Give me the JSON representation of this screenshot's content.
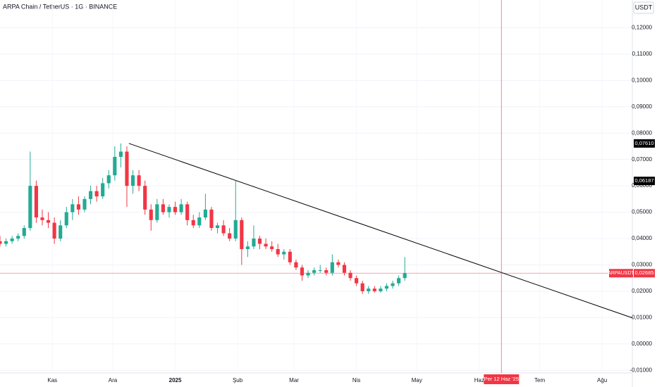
{
  "chart_data": {
    "type": "candlestick",
    "title": "ARPA Chain / TetherUS · 1G · BINANCE",
    "currency": "USDT",
    "symbol": "ARPAUSDT",
    "xlim": [
      0,
      314
    ],
    "ylim": [
      -0.011,
      0.13
    ],
    "xticks": [
      {
        "value": 26,
        "label": "Kas"
      },
      {
        "value": 56,
        "label": "Ara"
      },
      {
        "value": 87,
        "label": "2025"
      },
      {
        "value": 118,
        "label": "Şub"
      },
      {
        "value": 146,
        "label": "Mar"
      },
      {
        "value": 177,
        "label": "Nis"
      },
      {
        "value": 207,
        "label": "May"
      },
      {
        "value": 238,
        "label": "Haz"
      },
      {
        "value": 268,
        "label": "Tem"
      },
      {
        "value": 299,
        "label": "Ağu"
      }
    ],
    "yticks": [
      {
        "value": 0.12,
        "label": "0,12000"
      },
      {
        "value": 0.11,
        "label": "0,11000"
      },
      {
        "value": 0.1,
        "label": "0,10000"
      },
      {
        "value": 0.09,
        "label": "0,09000"
      },
      {
        "value": 0.08,
        "label": "0,08000"
      },
      {
        "value": 0.07,
        "label": "0,07000"
      },
      {
        "value": 0.06,
        "label": "0,06000"
      },
      {
        "value": 0.05,
        "label": "0,05000"
      },
      {
        "value": 0.04,
        "label": "0,04000"
      },
      {
        "value": 0.03,
        "label": "0,03000"
      },
      {
        "value": 0.02,
        "label": "0,02000"
      },
      {
        "value": 0.01,
        "label": "0,01000"
      },
      {
        "value": 0,
        "label": "0,00000"
      },
      {
        "value": -0.01,
        "label": "-0,01000"
      }
    ],
    "grid": true,
    "up_color": "#22ab94",
    "down_color": "#f23645",
    "x": [
      0,
      3,
      6,
      9,
      12,
      15,
      18,
      21,
      24,
      27,
      30,
      33,
      36,
      39,
      42,
      45,
      48,
      51,
      54,
      57,
      60,
      63,
      66,
      69,
      72,
      75,
      78,
      81,
      84,
      87,
      90,
      93,
      96,
      99,
      102,
      105,
      108,
      111,
      114,
      117,
      120,
      123,
      126,
      129,
      132,
      135,
      138,
      141,
      144,
      147,
      150,
      153,
      156,
      159,
      162,
      165,
      168,
      171,
      174,
      177,
      180,
      183,
      186,
      189,
      192,
      195,
      198,
      201
    ],
    "ohlc": [
      [
        0.039,
        0.041,
        0.037,
        0.038
      ],
      [
        0.038,
        0.04,
        0.037,
        0.039
      ],
      [
        0.039,
        0.041,
        0.038,
        0.04
      ],
      [
        0.04,
        0.042,
        0.039,
        0.041
      ],
      [
        0.041,
        0.045,
        0.04,
        0.044
      ],
      [
        0.044,
        0.073,
        0.043,
        0.06
      ],
      [
        0.06,
        0.062,
        0.046,
        0.048
      ],
      [
        0.048,
        0.051,
        0.045,
        0.047
      ],
      [
        0.047,
        0.05,
        0.044,
        0.046
      ],
      [
        0.046,
        0.048,
        0.038,
        0.04
      ],
      [
        0.04,
        0.047,
        0.039,
        0.045
      ],
      [
        0.045,
        0.052,
        0.044,
        0.05
      ],
      [
        0.05,
        0.055,
        0.047,
        0.053
      ],
      [
        0.053,
        0.056,
        0.049,
        0.051
      ],
      [
        0.051,
        0.056,
        0.05,
        0.055
      ],
      [
        0.055,
        0.06,
        0.053,
        0.058
      ],
      [
        0.058,
        0.06,
        0.054,
        0.056
      ],
      [
        0.056,
        0.063,
        0.055,
        0.061
      ],
      [
        0.061,
        0.066,
        0.059,
        0.064
      ],
      [
        0.064,
        0.075,
        0.062,
        0.071
      ],
      [
        0.071,
        0.0761,
        0.067,
        0.073
      ],
      [
        0.073,
        0.075,
        0.052,
        0.06
      ],
      [
        0.06,
        0.066,
        0.057,
        0.064
      ],
      [
        0.064,
        0.066,
        0.058,
        0.06
      ],
      [
        0.06,
        0.062,
        0.049,
        0.051
      ],
      [
        0.051,
        0.053,
        0.043,
        0.047
      ],
      [
        0.047,
        0.055,
        0.046,
        0.053
      ],
      [
        0.053,
        0.055,
        0.049,
        0.05
      ],
      [
        0.05,
        0.053,
        0.048,
        0.052
      ],
      [
        0.052,
        0.054,
        0.049,
        0.05
      ],
      [
        0.05,
        0.055,
        0.049,
        0.053
      ],
      [
        0.053,
        0.054,
        0.045,
        0.047
      ],
      [
        0.047,
        0.049,
        0.044,
        0.045
      ],
      [
        0.045,
        0.05,
        0.044,
        0.048
      ],
      [
        0.048,
        0.057,
        0.047,
        0.051
      ],
      [
        0.051,
        0.052,
        0.043,
        0.044
      ],
      [
        0.044,
        0.046,
        0.042,
        0.045
      ],
      [
        0.045,
        0.047,
        0.041,
        0.042
      ],
      [
        0.042,
        0.044,
        0.039,
        0.04
      ],
      [
        0.04,
        0.06187,
        0.039,
        0.047
      ],
      [
        0.047,
        0.048,
        0.03,
        0.036
      ],
      [
        0.036,
        0.039,
        0.033,
        0.037
      ],
      [
        0.037,
        0.045,
        0.036,
        0.04
      ],
      [
        0.04,
        0.041,
        0.036,
        0.038
      ],
      [
        0.038,
        0.04,
        0.036,
        0.037
      ],
      [
        0.037,
        0.039,
        0.035,
        0.036
      ],
      [
        0.036,
        0.038,
        0.033,
        0.034
      ],
      [
        0.034,
        0.036,
        0.032,
        0.035
      ],
      [
        0.035,
        0.036,
        0.03,
        0.031
      ],
      [
        0.031,
        0.032,
        0.028,
        0.029
      ],
      [
        0.029,
        0.03,
        0.024,
        0.026
      ],
      [
        0.026,
        0.028,
        0.025,
        0.027
      ],
      [
        0.027,
        0.029,
        0.026,
        0.028
      ],
      [
        0.028,
        0.03,
        0.027,
        0.028
      ],
      [
        0.028,
        0.029,
        0.026,
        0.027
      ],
      [
        0.027,
        0.034,
        0.026,
        0.031
      ],
      [
        0.031,
        0.032,
        0.029,
        0.03
      ],
      [
        0.03,
        0.031,
        0.026,
        0.027
      ],
      [
        0.027,
        0.028,
        0.024,
        0.025
      ],
      [
        0.025,
        0.026,
        0.022,
        0.023
      ],
      [
        0.023,
        0.024,
        0.019,
        0.02
      ],
      [
        0.02,
        0.022,
        0.019,
        0.021
      ],
      [
        0.021,
        0.022,
        0.0195,
        0.02
      ],
      [
        0.02,
        0.022,
        0.0195,
        0.021
      ],
      [
        0.021,
        0.023,
        0.02,
        0.022
      ],
      [
        0.022,
        0.024,
        0.021,
        0.023
      ],
      [
        0.023,
        0.026,
        0.022,
        0.025
      ],
      [
        0.025,
        0.033,
        0.024,
        0.02685
      ]
    ],
    "trendline": {
      "x": [
        64,
        314
      ],
      "y": [
        0.0761,
        0.0099
      ],
      "color": "#000000"
    },
    "last_price": {
      "value": 0.02685,
      "label": "0,02685",
      "color": "#f23645"
    },
    "price_labels": [
      {
        "value": 0.0761,
        "label": "0,07610"
      },
      {
        "value": 0.06187,
        "label": "0,06187"
      }
    ],
    "time_marker": {
      "value": 249,
      "label": "Per 12 Haz '25",
      "color": "#f23645"
    }
  }
}
